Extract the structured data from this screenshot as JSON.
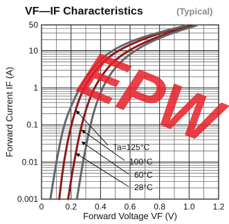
{
  "chart_data": {
    "type": "line",
    "title": "VF—IF  Characteristics",
    "subtitle": "(Typical)",
    "xlabel": "Forward Voltage  VF (V)",
    "ylabel": "Forward Current   IF (A)",
    "xlim": [
      0,
      1.2
    ],
    "ylim": [
      0.001,
      50
    ],
    "yscale": "log",
    "grid": true,
    "x_ticks": [
      "0",
      "0.2",
      "0.4",
      "0.6",
      "0.8",
      "1.0",
      "1.2"
    ],
    "y_ticks": [
      {
        "value": 50,
        "label": "50"
      },
      {
        "value": 10,
        "label": "10"
      },
      {
        "value": 1,
        "label": "1"
      },
      {
        "value": 0.1,
        "label": "0.1"
      },
      {
        "value": 0.01,
        "label": "0.01"
      },
      {
        "value": 0.001,
        "label": "0.001"
      }
    ],
    "series": [
      {
        "name": "Ta=125°C",
        "color": "#8b1a1a",
        "points": [
          [
            0.12,
            0.001
          ],
          [
            0.15,
            0.01
          ],
          [
            0.2,
            0.1
          ],
          [
            0.26,
            0.6
          ],
          [
            0.33,
            2
          ],
          [
            0.45,
            7
          ],
          [
            0.6,
            15
          ],
          [
            0.8,
            30
          ],
          [
            1.0,
            48
          ]
        ]
      },
      {
        "name": "100°C",
        "color": "#666666",
        "points": [
          [
            0.06,
            0.001
          ],
          [
            0.1,
            0.01
          ],
          [
            0.15,
            0.1
          ],
          [
            0.22,
            0.5
          ],
          [
            0.3,
            2
          ],
          [
            0.43,
            8
          ],
          [
            0.6,
            18
          ],
          [
            0.8,
            32
          ],
          [
            0.98,
            48
          ]
        ]
      },
      {
        "name": "60°C",
        "color": "#8b1a1a",
        "points": [
          [
            0.18,
            0.001
          ],
          [
            0.22,
            0.01
          ],
          [
            0.27,
            0.1
          ],
          [
            0.33,
            0.6
          ],
          [
            0.4,
            2
          ],
          [
            0.5,
            6
          ],
          [
            0.65,
            14
          ],
          [
            0.85,
            30
          ],
          [
            1.03,
            48
          ]
        ]
      },
      {
        "name": "28°C",
        "color": "#666666",
        "points": [
          [
            0.24,
            0.001
          ],
          [
            0.28,
            0.01
          ],
          [
            0.33,
            0.1
          ],
          [
            0.38,
            0.5
          ],
          [
            0.45,
            2
          ],
          [
            0.55,
            6
          ],
          [
            0.7,
            15
          ],
          [
            0.88,
            30
          ],
          [
            1.05,
            48
          ]
        ]
      }
    ],
    "legend": {
      "placement": "bottom-right",
      "labels": [
        "Ta=125°C",
        "100°C",
        "60°C",
        "28°C"
      ]
    }
  },
  "watermark": {
    "text": "EPW",
    "color": "#e8202a"
  }
}
